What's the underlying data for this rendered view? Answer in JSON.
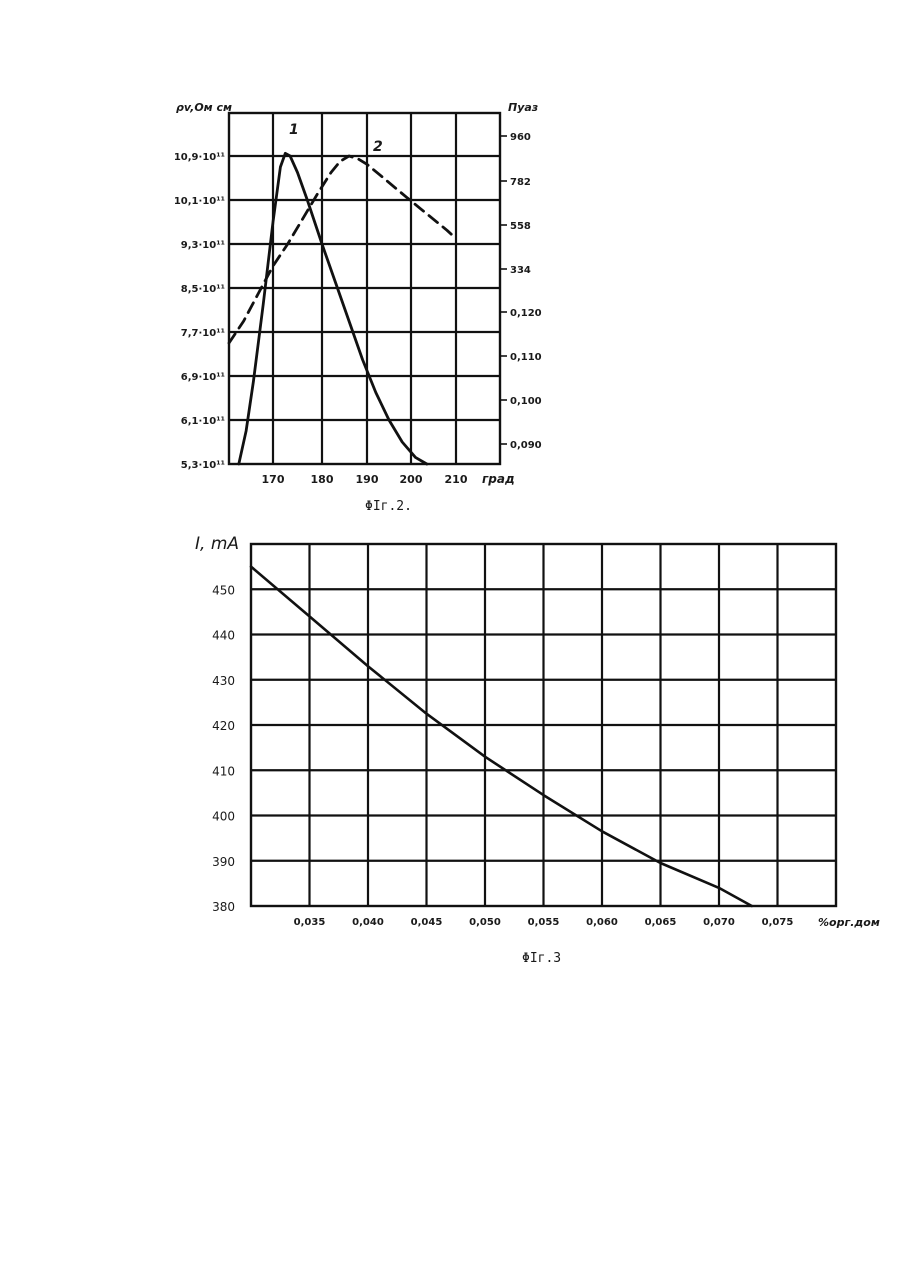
{
  "colors": {
    "ink": "#111111",
    "paper": "#ffffff"
  },
  "chart_data": [
    {
      "type": "line",
      "caption": "ΦIг.2.",
      "xlabel": "град",
      "ylabel_left": "ρv,Ом см",
      "ylabel_right": "Пуаз",
      "x_ticks": [
        "170",
        "180",
        "190",
        "200",
        "210"
      ],
      "y_left_ticks": [
        "10,9·10¹¹",
        "10,1·10¹¹",
        "9,3·10¹¹",
        "8,5·10¹¹",
        "7,7·10¹¹",
        "6,9·10¹¹",
        "6,1·10¹¹",
        "5,3·10¹¹"
      ],
      "y_right_ticks": [
        "960",
        "782",
        "558",
        "334",
        "0,120",
        "0,110",
        "0,100",
        "0,090"
      ],
      "xlim": [
        161,
        212
      ],
      "grid": true,
      "series": [
        {
          "name": "1",
          "style": "solid",
          "x": [
            163,
            164.5,
            166,
            168,
            170,
            171.5,
            172.5,
            173.5,
            175,
            177,
            180,
            183,
            186,
            189,
            192,
            195,
            198,
            201,
            203.5
          ],
          "y_left": [
            5.3,
            5.9,
            6.8,
            8.2,
            9.7,
            10.7,
            10.95,
            10.9,
            10.6,
            10.1,
            9.3,
            8.6,
            7.9,
            7.2,
            6.6,
            6.1,
            5.7,
            5.42,
            5.3
          ]
        },
        {
          "name": "2",
          "style": "dashed",
          "x": [
            161,
            164,
            167,
            170,
            173,
            176,
            179,
            182,
            184,
            186,
            188,
            190,
            193,
            196,
            199,
            202,
            205,
            208,
            210
          ],
          "y_left": [
            7.5,
            7.9,
            8.4,
            8.9,
            9.3,
            9.75,
            10.2,
            10.6,
            10.8,
            10.9,
            10.85,
            10.75,
            10.55,
            10.35,
            10.15,
            9.95,
            9.75,
            9.55,
            9.4
          ]
        }
      ]
    },
    {
      "type": "line",
      "caption": "ΦIг.3",
      "ylabel": "I, mA",
      "xlabel": "%орг.дом",
      "x_ticks": [
        "0,035",
        "0,040",
        "0,045",
        "0,050",
        "0,055",
        "0,060",
        "0,065",
        "0,070",
        "0,075"
      ],
      "y_ticks": [
        "450",
        "440",
        "430",
        "420",
        "410",
        "400",
        "390",
        "380"
      ],
      "xlim": [
        0.03,
        0.08
      ],
      "ylim": [
        380,
        460
      ],
      "grid": true,
      "series": [
        {
          "x": [
            0.03,
            0.035,
            0.04,
            0.045,
            0.05,
            0.055,
            0.06,
            0.065,
            0.07,
            0.0728
          ],
          "y": [
            455,
            444,
            433,
            422.5,
            413,
            404.5,
            396.5,
            389.5,
            384,
            380
          ]
        }
      ]
    }
  ]
}
